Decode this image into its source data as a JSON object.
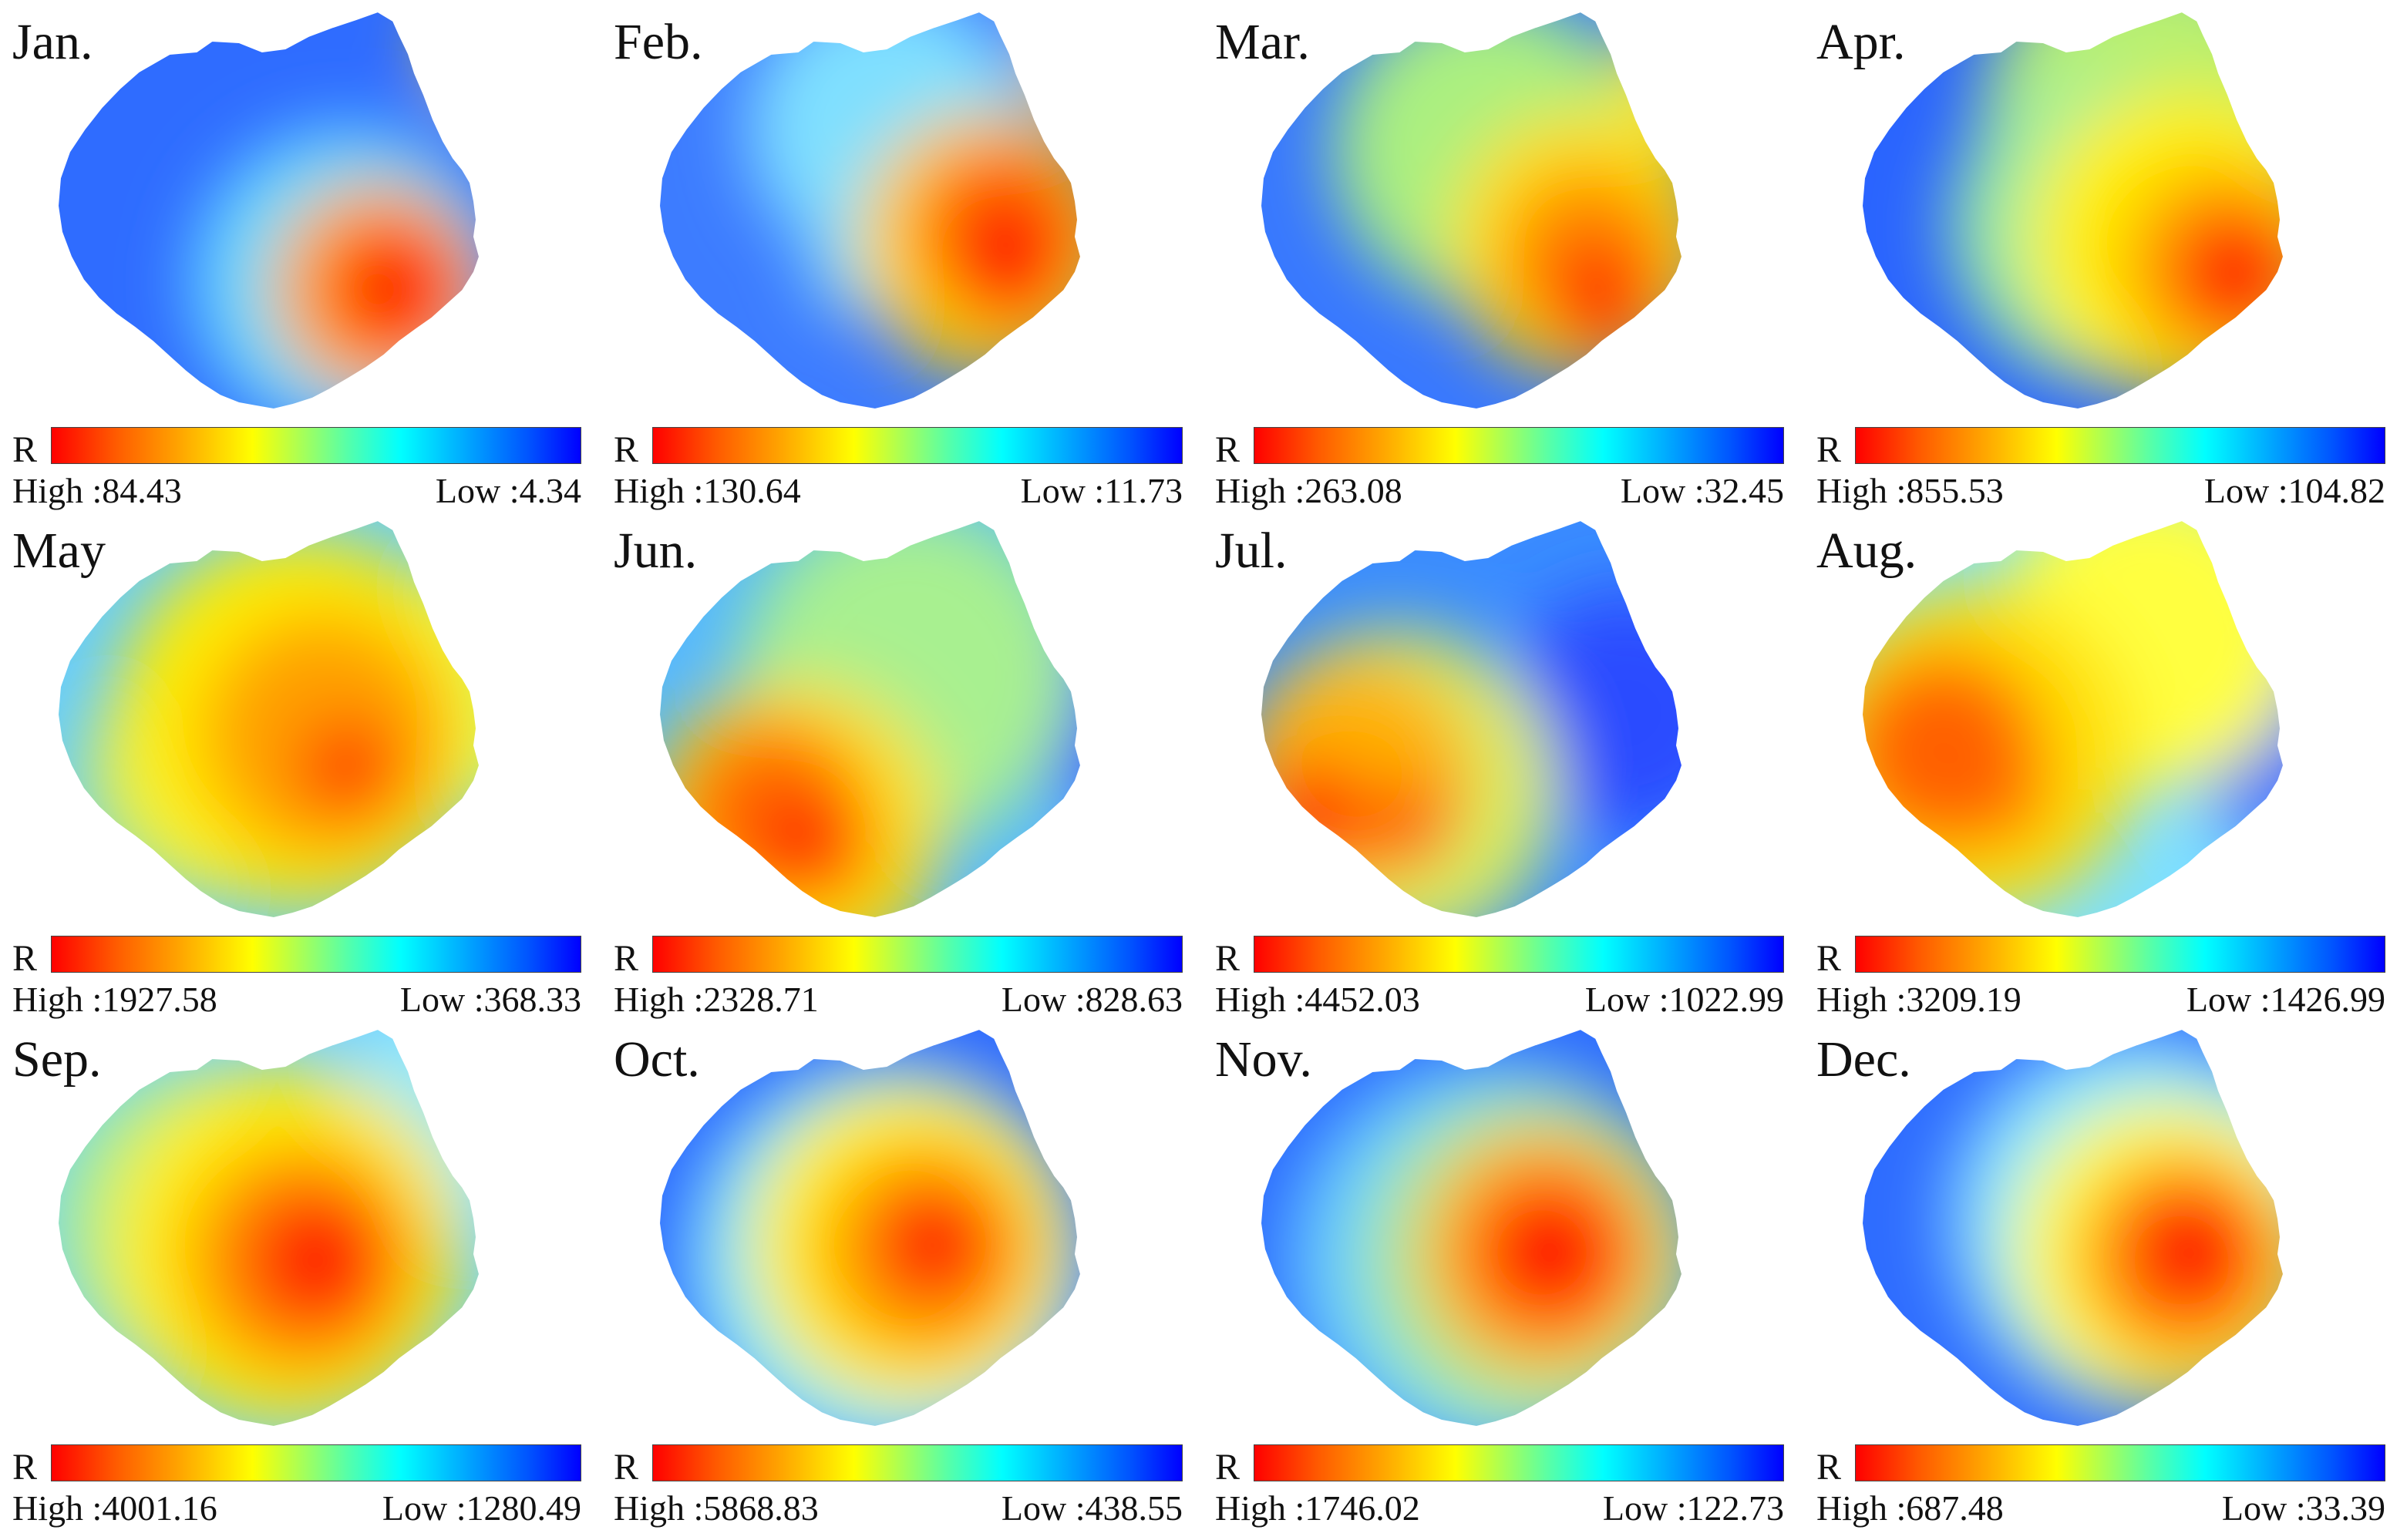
{
  "legend_symbol": "R",
  "high_prefix": "High :",
  "low_prefix": "Low :",
  "color_ramp": [
    "#ff0000",
    "#ffff00",
    "#00ffff",
    "#0000ff"
  ],
  "panels": [
    {
      "month": "Jan.",
      "high": "84.43",
      "low": "4.34"
    },
    {
      "month": "Feb.",
      "high": "130.64",
      "low": "11.73"
    },
    {
      "month": "Mar.",
      "high": "263.08",
      "low": "32.45"
    },
    {
      "month": "Apr.",
      "high": "855.53",
      "low": "104.82"
    },
    {
      "month": "May",
      "high": "1927.58",
      "low": "368.33"
    },
    {
      "month": "Jun.",
      "high": "2328.71",
      "low": "828.63"
    },
    {
      "month": "Jul.",
      "high": "4452.03",
      "low": "1022.99"
    },
    {
      "month": "Aug.",
      "high": "3209.19",
      "low": "1426.99"
    },
    {
      "month": "Sep.",
      "high": "4001.16",
      "low": "1280.49"
    },
    {
      "month": "Oct.",
      "high": "5868.83",
      "low": "438.55"
    },
    {
      "month": "Nov.",
      "high": "1746.02",
      "low": "122.73"
    },
    {
      "month": "Dec.",
      "high": "687.48",
      "low": "33.39"
    }
  ]
}
